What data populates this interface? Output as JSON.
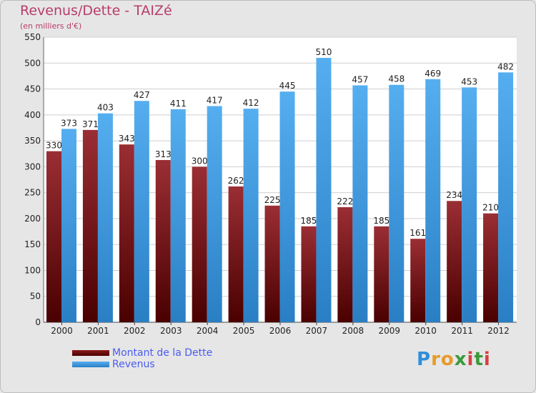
{
  "chart_data": {
    "type": "bar",
    "title": "Revenus/Dette - TAIZé",
    "subtitle": "(en milliers d'€)",
    "xlabel": "",
    "ylabel": "",
    "ylim": [
      0,
      550
    ],
    "yticks": [
      0,
      50,
      100,
      150,
      200,
      250,
      300,
      350,
      400,
      450,
      500,
      550
    ],
    "grid": true,
    "categories": [
      "2000",
      "2001",
      "2002",
      "2003",
      "2004",
      "2005",
      "2006",
      "2007",
      "2008",
      "2009",
      "2010",
      "2011",
      "2012"
    ],
    "series": [
      {
        "name": "Montant de la Dette",
        "color": "#8b1a1a",
        "values": [
          330,
          371,
          343,
          313,
          300,
          262,
          225,
          185,
          222,
          185,
          161,
          234,
          210
        ]
      },
      {
        "name": "Revenus",
        "color": "#3f9be0",
        "values": [
          373,
          403,
          427,
          411,
          417,
          412,
          445,
          510,
          457,
          458,
          469,
          453,
          482
        ]
      }
    ],
    "legend_position": "bottom-left"
  },
  "logo": {
    "letters": [
      "P",
      "r",
      "o",
      "x",
      "i",
      "t",
      "i"
    ],
    "colors": [
      "#2f8fd8",
      "#e89a2a",
      "#e89a2a",
      "#3a9a3a",
      "#d84040",
      "#3a9a3a",
      "#d84040"
    ]
  }
}
